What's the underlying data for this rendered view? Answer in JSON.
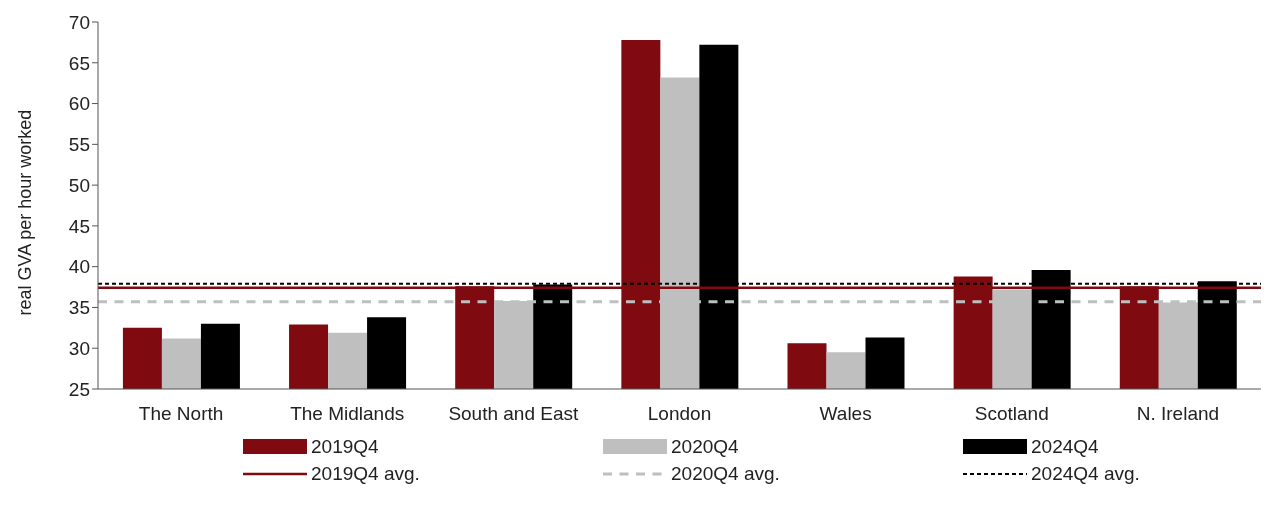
{
  "chart_data": {
    "type": "bar",
    "ylabel": "real GVA per hour worked",
    "categories": [
      "The North",
      "The Midlands",
      "South and East",
      "London",
      "Wales",
      "Scotland",
      "N. Ireland"
    ],
    "series": [
      {
        "name": "2019Q4",
        "color": "#7f0a0f",
        "values": [
          32.5,
          32.9,
          37.6,
          67.8,
          30.6,
          38.8,
          37.6
        ]
      },
      {
        "name": "2020Q4",
        "color": "#bfbfbf",
        "values": [
          31.2,
          31.9,
          35.8,
          63.2,
          29.5,
          37.2,
          35.6
        ]
      },
      {
        "name": "2024Q4",
        "color": "#000000",
        "values": [
          33.0,
          33.8,
          37.8,
          67.2,
          31.3,
          39.6,
          38.2
        ]
      }
    ],
    "ref_lines": [
      {
        "axis": "y",
        "value": 37.4,
        "label": "2019Q4 avg.",
        "color": "#7f0a0f",
        "line_style": "solid"
      },
      {
        "axis": "y",
        "value": 35.7,
        "label": "2020Q4 avg.",
        "color": "#bfbfbf",
        "line_style": "dashed"
      },
      {
        "axis": "y",
        "value": 37.9,
        "label": "2024Q4 avg.",
        "color": "#000000",
        "line_style": "dotted"
      }
    ],
    "ylim": [
      25,
      70
    ],
    "yticks": [
      25,
      30,
      35,
      40,
      45,
      50,
      55,
      60,
      65,
      70
    ],
    "grid": false,
    "legend": "bottom"
  }
}
